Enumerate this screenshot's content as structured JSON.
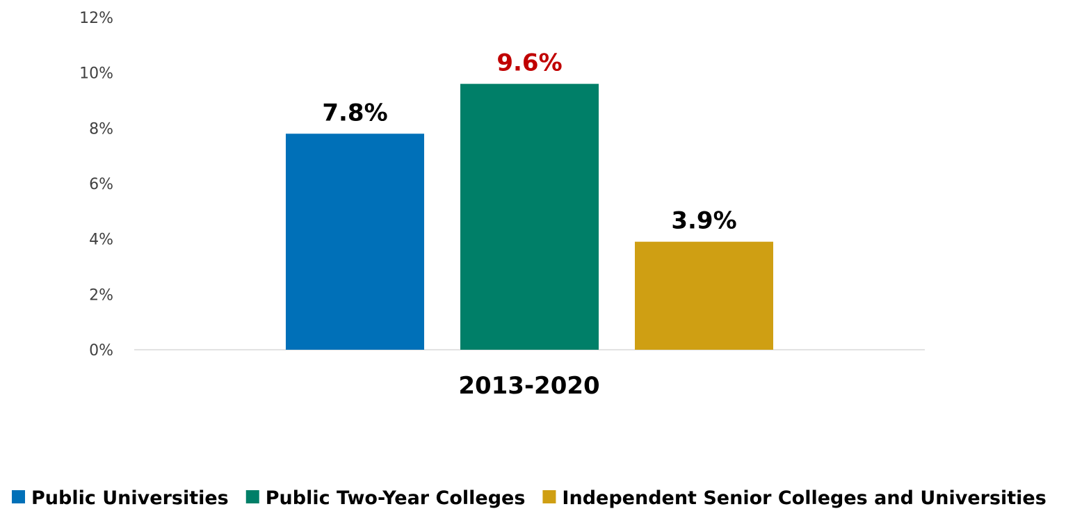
{
  "chart_data": {
    "type": "bar",
    "categories": [
      "2013-2020"
    ],
    "series": [
      {
        "name": "Public Universities",
        "values": [
          7.8
        ],
        "label": "7.8%",
        "color": "#0070b8",
        "label_color": "#000000"
      },
      {
        "name": "Public Two-Year Colleges",
        "values": [
          9.6
        ],
        "label": "9.6%",
        "color": "#007f68",
        "label_color": "#c00000"
      },
      {
        "name": "Independent Senior Colleges and Universities",
        "values": [
          3.9
        ],
        "label": "3.9%",
        "color": "#cf9f13",
        "label_color": "#000000"
      }
    ],
    "y_ticks": [
      0,
      2,
      4,
      6,
      8,
      10,
      12
    ],
    "y_tick_labels": [
      "0%",
      "2%",
      "4%",
      "6%",
      "8%",
      "10%",
      "12%"
    ],
    "ylim": [
      0,
      12
    ],
    "grid": false,
    "legend_position": "bottom",
    "title": "",
    "xlabel": "",
    "ylabel": ""
  }
}
